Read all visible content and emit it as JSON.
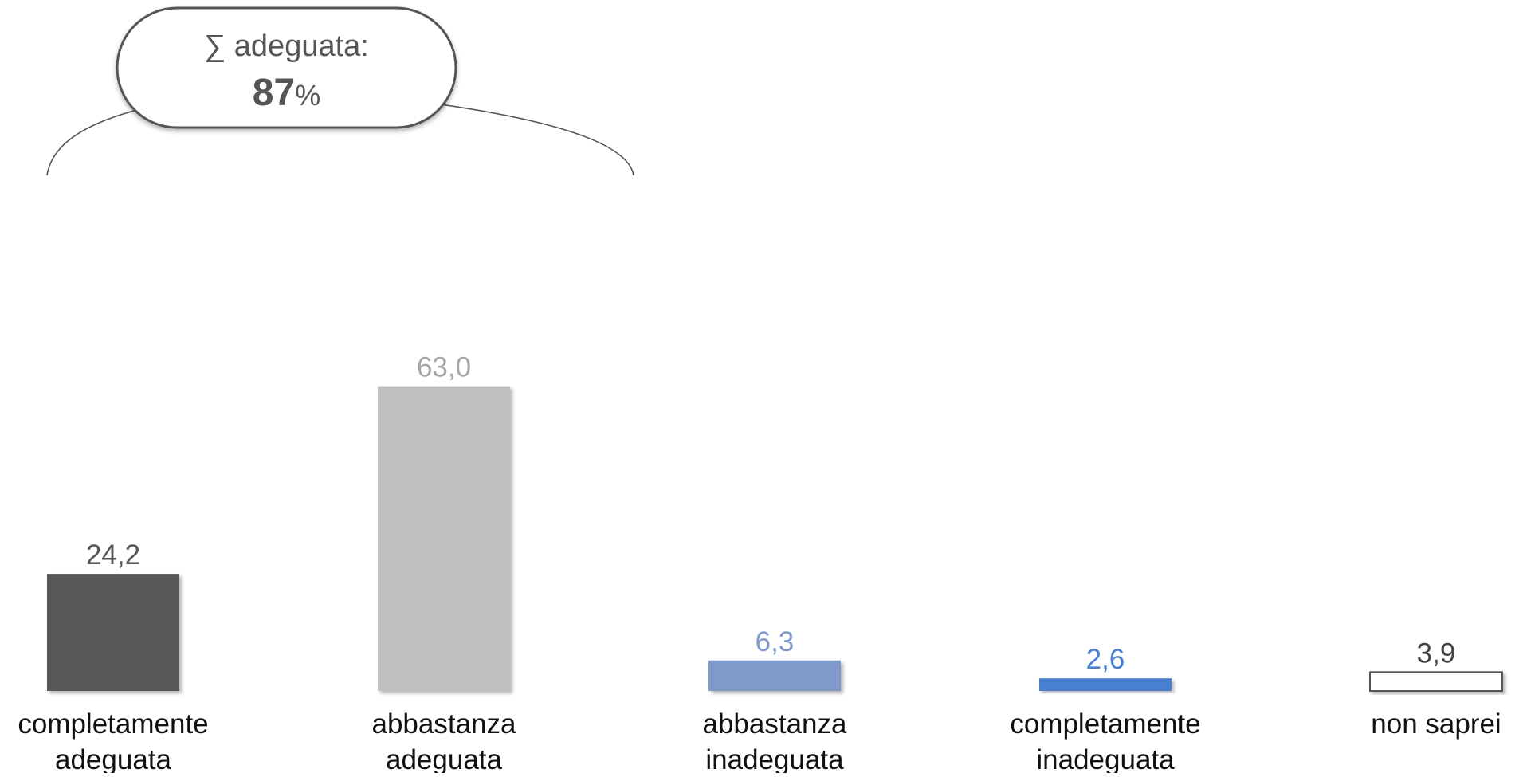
{
  "chart_data": {
    "type": "bar",
    "categories": [
      [
        "completamente",
        "adeguata"
      ],
      [
        "abbastanza",
        "adeguata"
      ],
      [
        "abbastanza",
        "inadeguata"
      ],
      [
        "completamente",
        "inadeguata"
      ],
      [
        "non saprei"
      ]
    ],
    "values": [
      24.2,
      63.0,
      6.3,
      2.6,
      3.9
    ],
    "value_labels": [
      "24,2",
      "63,0",
      "6,3",
      "2,6",
      "3,9"
    ],
    "colors": [
      "#595959",
      "#bfbfbf",
      "#7f9ac9",
      "#4a7fd1",
      "#ffffff"
    ],
    "label_colors": [
      "#555555",
      "#a6a6a6",
      "#7f9ac9",
      "#4a7fd1",
      "#444444"
    ],
    "ylim": [
      0,
      70
    ],
    "grid": false,
    "legend": false,
    "annotation": {
      "line1": "∑ adeguata:",
      "value": "87",
      "unit": "%",
      "spans_categories": [
        0,
        1
      ]
    }
  }
}
